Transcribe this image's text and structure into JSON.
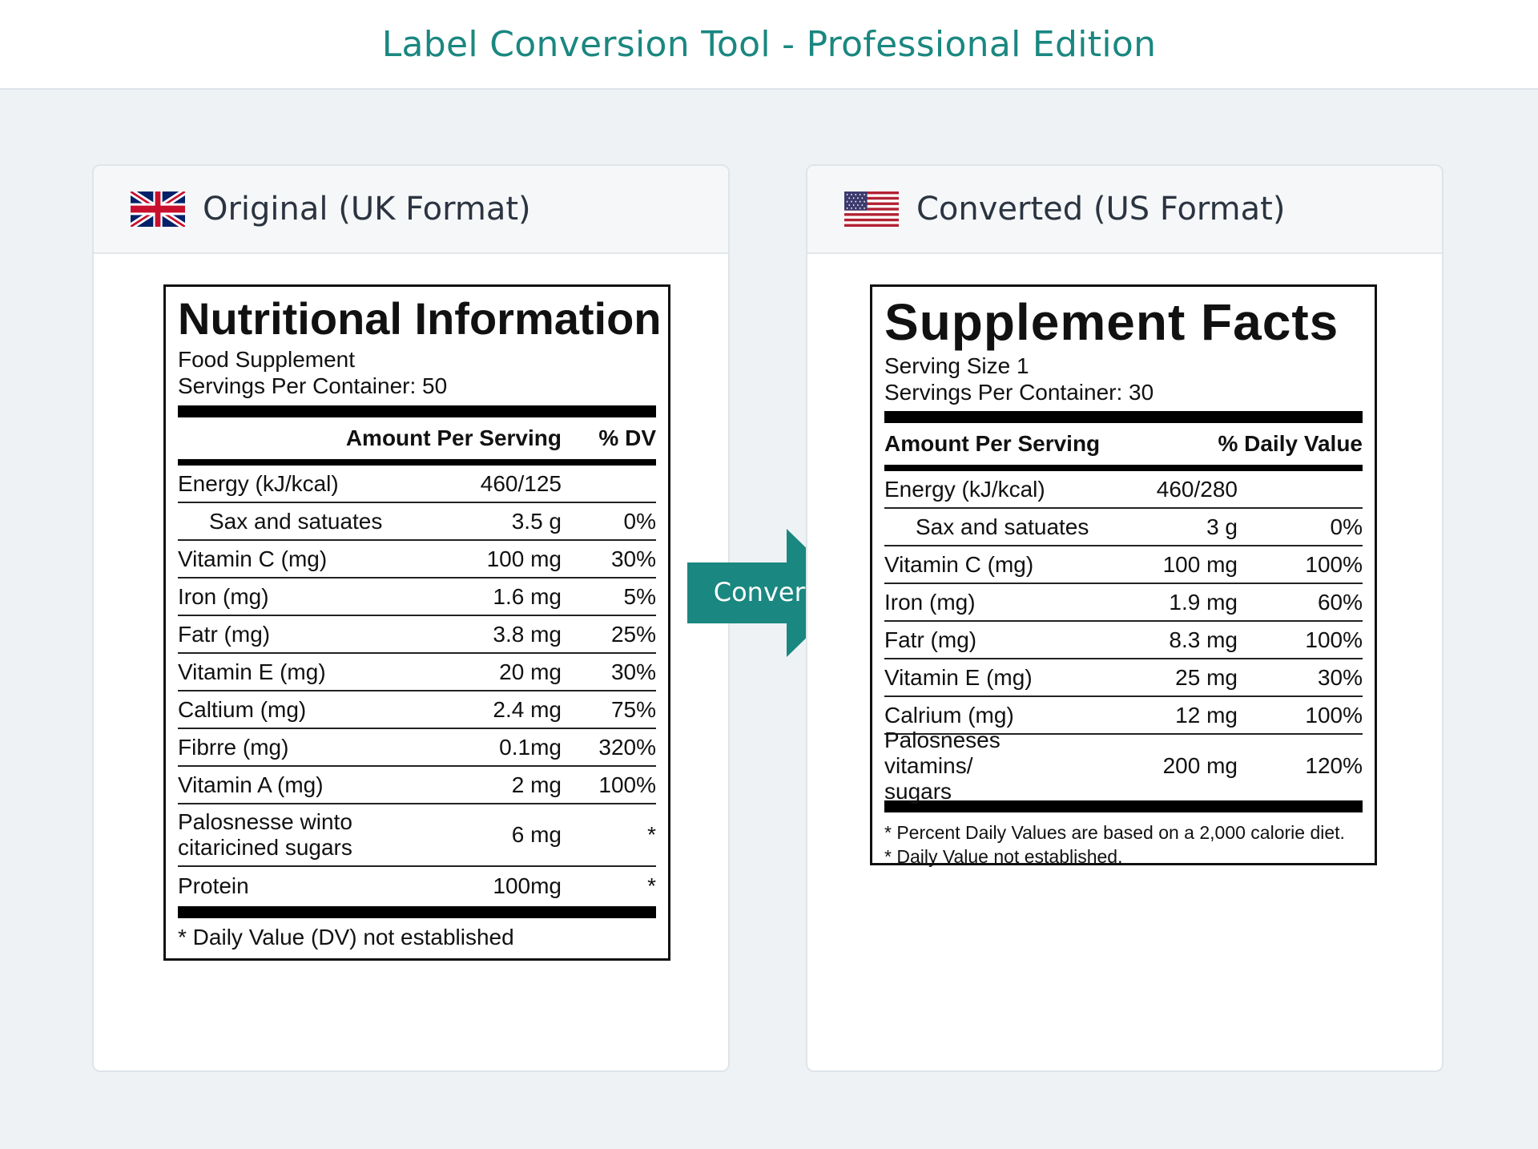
{
  "app": {
    "title": "Label Conversion Tool - Professional Edition"
  },
  "convert_button": {
    "label": "Convert",
    "color": "#1a8780"
  },
  "original": {
    "header": "Original (UK Format)",
    "flag_icon": "uk-flag-icon",
    "label": {
      "title": "Nutritional Information",
      "subtitle": "Food Supplement",
      "servings": "Servings Per Container: 50",
      "col_amount": "Amount Per Serving",
      "col_dv": "% DV",
      "rows": [
        {
          "name": "Energy (kJ/kcal)",
          "amount": "460/125",
          "dv": ""
        },
        {
          "name": "Sax and satuates",
          "amount": "3.5 g",
          "dv": "0%"
        },
        {
          "name": "Vitamin C (mg)",
          "amount": "100 mg",
          "dv": "30%"
        },
        {
          "name": "Iron (mg)",
          "amount": "1.6 mg",
          "dv": "5%"
        },
        {
          "name": "Fatr (mg)",
          "amount": "3.8 mg",
          "dv": "25%"
        },
        {
          "name": "Vitamin E (mg)",
          "amount": "20 mg",
          "dv": "30%"
        },
        {
          "name": "Caltium (mg)",
          "amount": "2.4 mg",
          "dv": "75%"
        },
        {
          "name": "Fibrre (mg)",
          "amount": "0.1mg",
          "dv": "320%"
        },
        {
          "name": "Vitamin A (mg)",
          "amount": "2 mg",
          "dv": "100%"
        },
        {
          "name_line1": "Palosnesse winto",
          "name_line2": "citaricined sugars",
          "amount": "6 mg",
          "dv": "*"
        },
        {
          "name": "Protein",
          "amount": "100mg",
          "dv": "*"
        }
      ],
      "footnote": "* Daily Value (DV) not established"
    }
  },
  "converted": {
    "header": "Converted (US Format)",
    "flag_icon": "us-flag-icon",
    "label": {
      "title": "Supplement Facts",
      "serving_size": "Serving Size 1",
      "servings": "Servings Per Container: 30",
      "col_amount": "Amount Per Serving",
      "col_dv": "% Daily Value",
      "rows": [
        {
          "name": "Energy (kJ/kcal)",
          "amount": "460/280",
          "dv": ""
        },
        {
          "name": "Sax and satuates",
          "amount": "3 g",
          "dv": "0%"
        },
        {
          "name": "Vitamin C (mg)",
          "amount": "100 mg",
          "dv": "100%"
        },
        {
          "name": "Iron (mg)",
          "amount": "1.9 mg",
          "dv": "60%"
        },
        {
          "name": "Fatr (mg)",
          "amount": "8.3 mg",
          "dv": "100%"
        },
        {
          "name": "Vitamin E (mg)",
          "amount": "25 mg",
          "dv": "30%"
        },
        {
          "name": "Calrium (mg)",
          "amount": "12 mg",
          "dv": "100%"
        },
        {
          "name_line1": "Palosneses vitamins/",
          "name_line2": "sugars",
          "amount": "200 mg",
          "dv": "120%"
        }
      ],
      "footnote1": "* Percent Daily Values are based on a 2,000 calorie diet.",
      "footnote2": "* Daily Value not established."
    }
  }
}
